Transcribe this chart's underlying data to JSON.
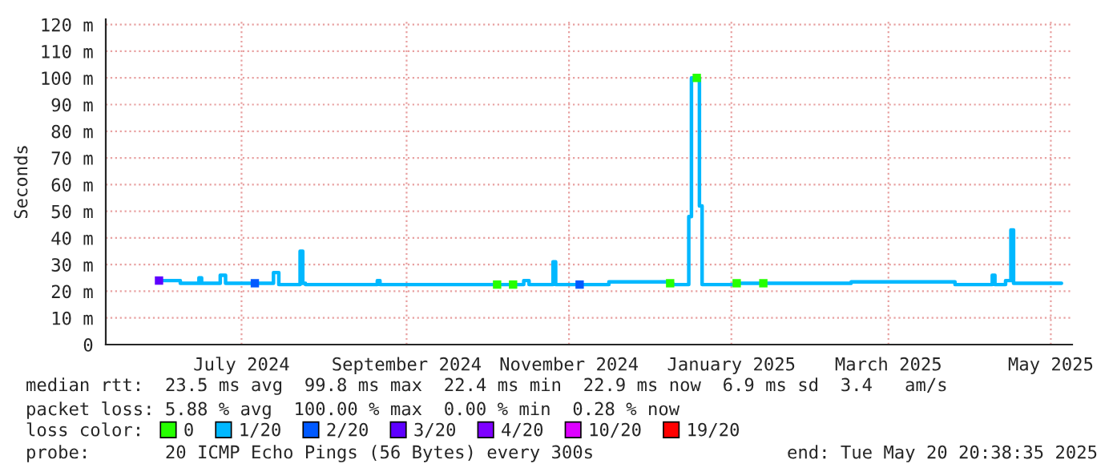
{
  "chart_data": {
    "type": "step",
    "ylabel": "Seconds",
    "legend_title": "loss color:",
    "legend": "bottom",
    "grid": true,
    "line_style": "solid",
    "marker": "none",
    "x": [
      "2024-06-15",
      "2024-06-17",
      "2024-06-23",
      "2024-06-30",
      "2024-07-01",
      "2024-07-08",
      "2024-07-10",
      "2024-07-21",
      "2024-07-22",
      "2024-07-28",
      "2024-07-30",
      "2024-08-07",
      "2024-08-08",
      "2024-08-09",
      "2024-09-05",
      "2024-09-06",
      "2024-10-20",
      "2024-10-21",
      "2024-10-26",
      "2024-10-27",
      "2024-10-30",
      "2024-11-01",
      "2024-11-10",
      "2024-11-11",
      "2024-11-20",
      "2024-11-21",
      "2024-12-01",
      "2024-12-24",
      "2024-12-25",
      "2024-12-31",
      "2025-01-01",
      "2025-01-03",
      "2025-01-04",
      "2025-01-05",
      "2025-01-18",
      "2025-01-20",
      "2025-01-28",
      "2025-01-29",
      "2025-03-02",
      "2025-04-10",
      "2025-04-24",
      "2025-04-25",
      "2025-04-29",
      "2025-05-01",
      "2025-05-02",
      "2025-05-20"
    ],
    "series": [
      {
        "name": "0",
        "type": "scatter",
        "marker": "square",
        "color": "#26ff00",
        "values": [
          null,
          null,
          null,
          null,
          null,
          null,
          null,
          null,
          null,
          null,
          null,
          null,
          null,
          null,
          null,
          null,
          22.5,
          null,
          22.5,
          null,
          null,
          null,
          null,
          null,
          null,
          null,
          null,
          23,
          null,
          null,
          null,
          100,
          null,
          null,
          23,
          null,
          23,
          null,
          null,
          null,
          null,
          null,
          null,
          null,
          null,
          null
        ]
      },
      {
        "name": "1/20",
        "color": "#00b8ff",
        "values": [
          24,
          24,
          23,
          25,
          23,
          26,
          23,
          23,
          23,
          27,
          22.5,
          35,
          23,
          22.5,
          24,
          22.5,
          22.5,
          22.5,
          22.5,
          22.5,
          24,
          22.5,
          31,
          22.5,
          22.5,
          22.5,
          23.5,
          23,
          22.5,
          48,
          100,
          100,
          52,
          22.5,
          23,
          23,
          23,
          23,
          23.5,
          22.5,
          26,
          22.5,
          24,
          43,
          23,
          23
        ]
      },
      {
        "name": "2/20",
        "type": "scatter",
        "marker": "square",
        "color": "#0059ff",
        "values": [
          null,
          null,
          null,
          null,
          null,
          null,
          null,
          23,
          null,
          null,
          null,
          null,
          null,
          null,
          null,
          null,
          null,
          null,
          null,
          null,
          null,
          null,
          null,
          null,
          22.5,
          null,
          null,
          null,
          null,
          null,
          null,
          null,
          null,
          null,
          null,
          null,
          null,
          null,
          null,
          null,
          null,
          null,
          null,
          null,
          null,
          null
        ]
      },
      {
        "name": "3/20",
        "type": "scatter",
        "marker": "square",
        "color": "#5e00ff",
        "values": [
          24,
          null,
          null,
          null,
          null,
          null,
          null,
          null,
          null,
          null,
          null,
          null,
          null,
          null,
          null,
          null,
          null,
          null,
          null,
          null,
          null,
          null,
          null,
          null,
          null,
          null,
          null,
          null,
          null,
          null,
          null,
          null,
          null,
          null,
          null,
          null,
          null,
          null,
          null,
          null,
          null,
          null,
          null,
          null,
          null,
          null
        ]
      },
      {
        "name": "4/20",
        "type": "scatter",
        "marker": "square",
        "color": "#7e00ff",
        "values": [
          null,
          null,
          null,
          null,
          null,
          null,
          null,
          null,
          null,
          null,
          null,
          null,
          null,
          null,
          null,
          null,
          null,
          null,
          null,
          null,
          null,
          null,
          null,
          null,
          null,
          null,
          null,
          null,
          null,
          null,
          null,
          null,
          null,
          null,
          null,
          null,
          null,
          null,
          null,
          null,
          null,
          null,
          null,
          null,
          null,
          null
        ]
      },
      {
        "name": "10/20",
        "type": "scatter",
        "marker": "square",
        "color": "#dd00ff",
        "values": [
          null,
          null,
          null,
          null,
          null,
          null,
          null,
          null,
          null,
          null,
          null,
          null,
          null,
          null,
          null,
          null,
          null,
          null,
          null,
          null,
          null,
          null,
          null,
          null,
          null,
          null,
          null,
          null,
          null,
          null,
          null,
          null,
          null,
          null,
          null,
          null,
          null,
          null,
          null,
          null,
          null,
          null,
          null,
          null,
          null,
          null
        ]
      },
      {
        "name": "19/20",
        "type": "scatter",
        "marker": "square",
        "color": "#ff0000",
        "values": [
          null,
          null,
          null,
          null,
          null,
          null,
          null,
          null,
          null,
          null,
          null,
          null,
          null,
          null,
          null,
          null,
          null,
          null,
          null,
          null,
          null,
          null,
          null,
          null,
          null,
          null,
          null,
          null,
          null,
          null,
          null,
          null,
          null,
          null,
          null,
          null,
          null,
          null,
          null,
          null,
          null,
          null,
          null,
          null,
          null,
          null
        ]
      }
    ],
    "xlim": [
      "2024-05-26",
      "2025-05-24"
    ],
    "xticks": [
      {
        "value": "2024-07-16",
        "label": "July 2024"
      },
      {
        "value": "2024-09-16",
        "label": "September 2024"
      },
      {
        "value": "2024-11-16",
        "label": "November 2024"
      },
      {
        "value": "2025-01-16",
        "label": "January 2025"
      },
      {
        "value": "2025-03-16",
        "label": "March 2025"
      },
      {
        "value": "2025-05-16",
        "label": "May 2025"
      }
    ],
    "ylim": [
      0,
      122
    ],
    "yticks": [
      0,
      {
        "value": 10,
        "label": "10 m"
      },
      {
        "value": 20,
        "label": "20 m"
      },
      {
        "value": 30,
        "label": "30 m"
      },
      {
        "value": 40,
        "label": "40 m"
      },
      {
        "value": 50,
        "label": "50 m"
      },
      {
        "value": 60,
        "label": "60 m"
      },
      {
        "value": 70,
        "label": "70 m"
      },
      {
        "value": 80,
        "label": "80 m"
      },
      {
        "value": 90,
        "label": "90 m"
      },
      {
        "value": 100,
        "label": "100 m"
      },
      {
        "value": 110,
        "label": "110 m"
      },
      {
        "value": 120,
        "label": "120 m"
      }
    ],
    "annotations": [
      "median rtt:  23.5 ms avg  99.8 ms max  22.4 ms min  22.9 ms now  6.9 ms sd  3.4   am/s",
      "packet loss: 5.88 % avg  100.00 % max  0.00 % min  0.28 % now",
      "probe:       20 ICMP Echo Pings (56 Bytes) every 300s",
      "end: Tue May 20 20:38:35 2025"
    ]
  }
}
